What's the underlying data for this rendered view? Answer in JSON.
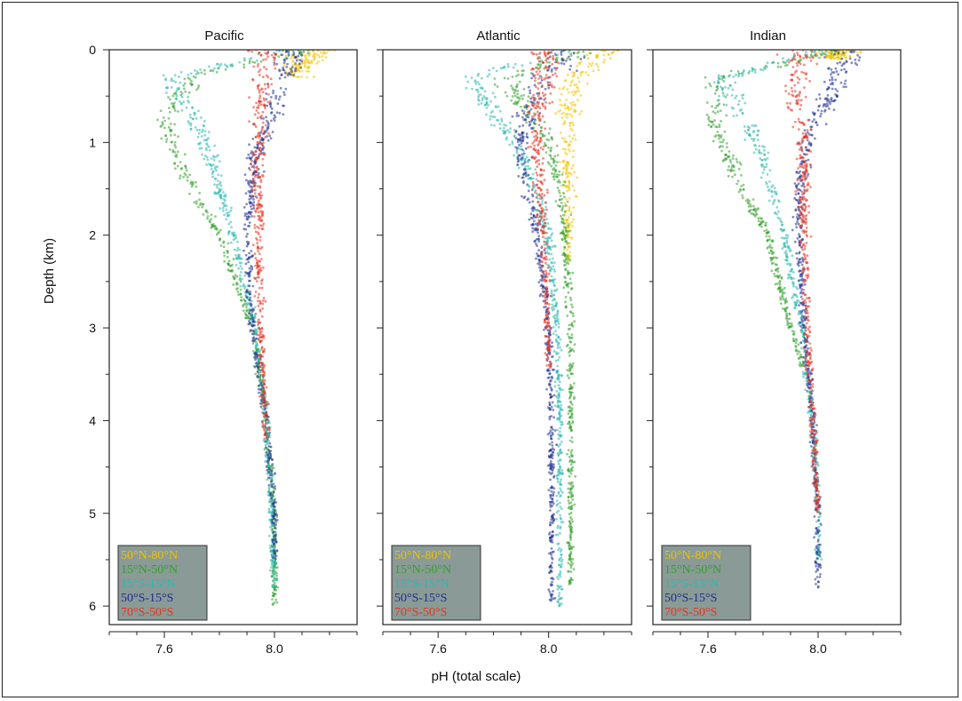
{
  "chart_data": {
    "type": "scatter",
    "xlabel": "pH (total scale)",
    "ylabel": "Depth (km)",
    "xlim": [
      7.4,
      8.3
    ],
    "ylim": [
      0,
      6.2
    ],
    "y_inverted": true,
    "x_ticks": [
      {
        "value": 7.6,
        "label": "7.6"
      },
      {
        "value": 8.0,
        "label": "8.0"
      }
    ],
    "y_ticks": [
      {
        "value": 0,
        "label": "0"
      },
      {
        "value": 1,
        "label": "1"
      },
      {
        "value": 2,
        "label": "2"
      },
      {
        "value": 3,
        "label": "3"
      },
      {
        "value": 4,
        "label": "4"
      },
      {
        "value": 5,
        "label": "5"
      },
      {
        "value": 6,
        "label": "6"
      }
    ],
    "legend": {
      "placement": "bottom-left",
      "background": "#8a9a96",
      "entries": [
        {
          "label": "50°N-80°N",
          "color": "#f2c200"
        },
        {
          "label": "15°N-50°N",
          "color": "#33a02c"
        },
        {
          "label": "15°S-15°N",
          "color": "#2bb8b0"
        },
        {
          "label": "50°S-15°S",
          "color": "#1f2f8f"
        },
        {
          "label": "70°S-50°S",
          "color": "#e8321e"
        }
      ]
    },
    "panels": [
      {
        "title": "Pacific",
        "series": [
          {
            "name": "50°N-80°N",
            "depth_max": 0.3,
            "profile": [
              [
                0.0,
                8.18
              ],
              [
                0.05,
                8.12
              ],
              [
                0.15,
                8.1
              ],
              [
                0.3,
                8.08
              ]
            ]
          },
          {
            "name": "15°N-50°N",
            "depth_max": 6.0,
            "profile": [
              [
                0.0,
                8.12
              ],
              [
                0.3,
                7.7
              ],
              [
                0.7,
                7.6
              ],
              [
                1.0,
                7.62
              ],
              [
                1.5,
                7.7
              ],
              [
                2.0,
                7.8
              ],
              [
                3.0,
                7.92
              ],
              [
                4.0,
                7.97
              ],
              [
                5.0,
                8.0
              ],
              [
                6.0,
                8.0
              ]
            ]
          },
          {
            "name": "15°S-15°N",
            "depth_max": 5.8,
            "profile": [
              [
                0.0,
                8.06
              ],
              [
                0.3,
                7.62
              ],
              [
                0.6,
                7.68
              ],
              [
                1.0,
                7.75
              ],
              [
                2.0,
                7.85
              ],
              [
                3.0,
                7.93
              ],
              [
                4.0,
                7.97
              ],
              [
                5.0,
                7.99
              ],
              [
                5.8,
                8.0
              ]
            ]
          },
          {
            "name": "50°S-15°S",
            "depth_max": 5.5,
            "profile": [
              [
                0.0,
                8.06
              ],
              [
                0.4,
                8.02
              ],
              [
                0.8,
                7.97
              ],
              [
                1.2,
                7.93
              ],
              [
                2.0,
                7.9
              ],
              [
                3.0,
                7.92
              ],
              [
                4.0,
                7.97
              ],
              [
                5.0,
                8.0
              ],
              [
                5.5,
                8.0
              ]
            ]
          },
          {
            "name": "70°S-50°S",
            "depth_max": 4.2,
            "profile": [
              [
                0.1,
                7.97
              ],
              [
                0.5,
                7.95
              ],
              [
                1.0,
                7.94
              ],
              [
                2.0,
                7.94
              ],
              [
                3.0,
                7.95
              ],
              [
                4.2,
                7.97
              ]
            ]
          }
        ]
      },
      {
        "title": "Atlantic",
        "series": [
          {
            "name": "50°N-80°N",
            "depth_max": 2.3,
            "profile": [
              [
                0.0,
                8.22
              ],
              [
                0.2,
                8.12
              ],
              [
                0.5,
                8.08
              ],
              [
                1.0,
                8.07
              ],
              [
                1.5,
                8.07
              ],
              [
                2.3,
                8.07
              ]
            ]
          },
          {
            "name": "15°N-50°N",
            "depth_max": 5.8,
            "profile": [
              [
                0.0,
                8.15
              ],
              [
                0.3,
                7.85
              ],
              [
                0.6,
                7.9
              ],
              [
                1.0,
                8.0
              ],
              [
                1.5,
                8.04
              ],
              [
                2.0,
                8.06
              ],
              [
                3.0,
                8.08
              ],
              [
                4.0,
                8.08
              ],
              [
                5.0,
                8.08
              ],
              [
                5.8,
                8.08
              ]
            ]
          },
          {
            "name": "15°S-15°N",
            "depth_max": 6.0,
            "profile": [
              [
                0.0,
                8.08
              ],
              [
                0.3,
                7.72
              ],
              [
                0.6,
                7.78
              ],
              [
                1.0,
                7.88
              ],
              [
                1.5,
                7.95
              ],
              [
                2.0,
                8.0
              ],
              [
                3.0,
                8.03
              ],
              [
                4.0,
                8.04
              ],
              [
                5.0,
                8.04
              ],
              [
                6.0,
                8.04
              ]
            ]
          },
          {
            "name": "50°S-15°S",
            "depth_max": 6.0,
            "profile": [
              [
                0.1,
                8.05
              ],
              [
                0.6,
                7.93
              ],
              [
                1.0,
                7.9
              ],
              [
                1.5,
                7.92
              ],
              [
                2.0,
                7.96
              ],
              [
                3.0,
                8.0
              ],
              [
                4.0,
                8.01
              ],
              [
                5.0,
                8.01
              ],
              [
                6.0,
                8.01
              ]
            ]
          },
          {
            "name": "70°S-50°S",
            "depth_max": 3.5,
            "profile": [
              [
                0.2,
                7.98
              ],
              [
                0.8,
                7.96
              ],
              [
                1.5,
                7.97
              ],
              [
                2.5,
                7.99
              ],
              [
                3.5,
                8.0
              ]
            ]
          }
        ]
      },
      {
        "title": "Indian",
        "series": [
          {
            "name": "50°N-80°N",
            "depth_max": 0.1,
            "profile": [
              [
                0.0,
                8.08
              ],
              [
                0.1,
                8.06
              ]
            ]
          },
          {
            "name": "15°N-50°N",
            "depth_max": 3.5,
            "profile": [
              [
                0.0,
                8.08
              ],
              [
                0.3,
                7.65
              ],
              [
                0.7,
                7.62
              ],
              [
                1.0,
                7.65
              ],
              [
                1.5,
                7.72
              ],
              [
                2.0,
                7.82
              ],
              [
                3.0,
                7.9
              ],
              [
                3.5,
                7.95
              ]
            ]
          },
          {
            "name": "15°S-15°N",
            "depth_max": 5.5,
            "profile": [
              [
                0.0,
                8.07
              ],
              [
                0.3,
                7.65
              ],
              [
                0.6,
                7.7
              ],
              [
                1.0,
                7.78
              ],
              [
                2.0,
                7.88
              ],
              [
                3.0,
                7.94
              ],
              [
                4.0,
                7.98
              ],
              [
                5.0,
                8.0
              ],
              [
                5.5,
                8.0
              ]
            ]
          },
          {
            "name": "50°S-15°S",
            "depth_max": 5.8,
            "profile": [
              [
                0.0,
                8.1
              ],
              [
                0.3,
                8.07
              ],
              [
                0.6,
                8.02
              ],
              [
                1.0,
                7.96
              ],
              [
                1.5,
                7.93
              ],
              [
                2.0,
                7.93
              ],
              [
                3.0,
                7.95
              ],
              [
                4.0,
                7.98
              ],
              [
                5.0,
                8.0
              ],
              [
                5.8,
                8.0
              ]
            ]
          },
          {
            "name": "70°S-50°S",
            "depth_max": 5.0,
            "profile": [
              [
                0.2,
                7.93
              ],
              [
                0.5,
                7.92
              ],
              [
                1.0,
                7.95
              ],
              [
                2.0,
                7.95
              ],
              [
                3.0,
                7.96
              ],
              [
                4.0,
                7.98
              ],
              [
                5.0,
                8.0
              ]
            ]
          }
        ]
      }
    ]
  }
}
